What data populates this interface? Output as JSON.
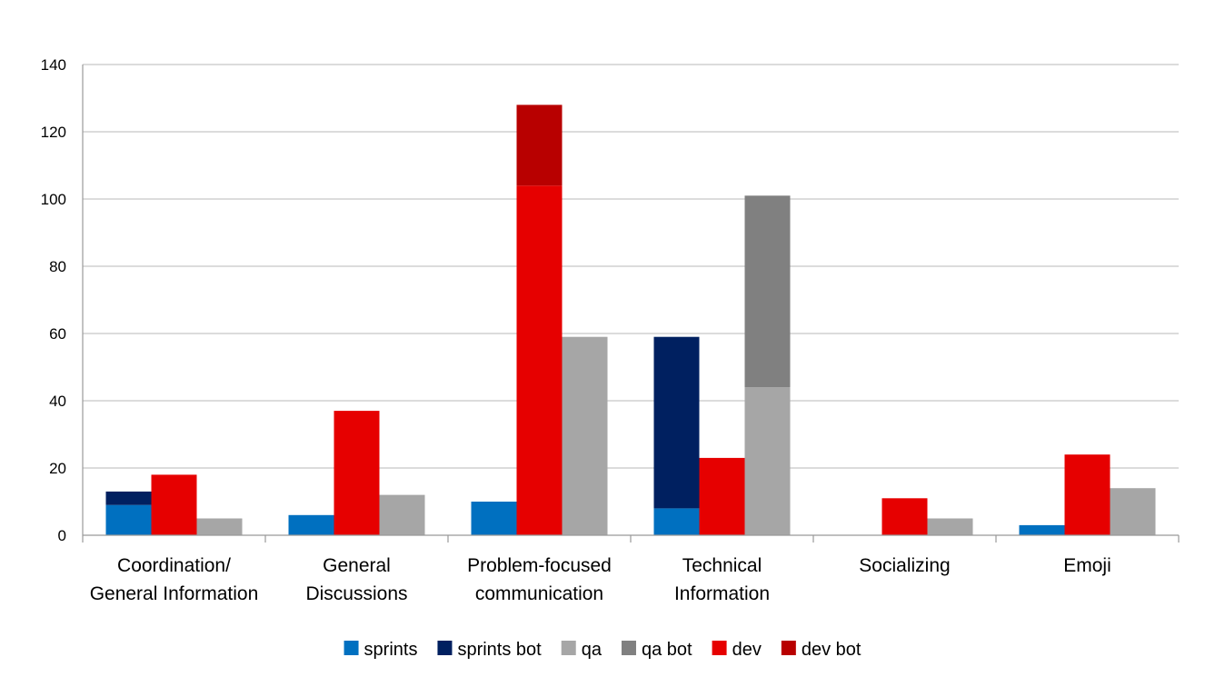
{
  "chart_data": {
    "type": "bar",
    "stacked_groups": true,
    "title": "",
    "xlabel": "",
    "ylabel": "",
    "ylim": [
      0,
      140
    ],
    "yticks": [
      0,
      20,
      40,
      60,
      80,
      100,
      120,
      140
    ],
    "grid": true,
    "legend_position": "bottom",
    "categories": [
      [
        "Coordination/",
        "General Information"
      ],
      [
        "General",
        "Discussions"
      ],
      [
        "Problem-focused",
        "communication"
      ],
      [
        "Technical",
        "Information"
      ],
      [
        "Socializing"
      ],
      [
        "Emoji"
      ]
    ],
    "groups": [
      {
        "name": "sprints",
        "stack": [
          {
            "series": "sprints",
            "values": [
              9,
              6,
              10,
              8,
              0,
              3
            ]
          },
          {
            "series": "sprints bot",
            "values": [
              4,
              0,
              0,
              51,
              0,
              0
            ]
          }
        ]
      },
      {
        "name": "dev",
        "stack": [
          {
            "series": "dev",
            "values": [
              18,
              37,
              104,
              23,
              11,
              24
            ]
          },
          {
            "series": "dev bot",
            "values": [
              0,
              0,
              24,
              0,
              0,
              0
            ]
          }
        ]
      },
      {
        "name": "qa",
        "stack": [
          {
            "series": "qa",
            "values": [
              5,
              12,
              59,
              44,
              5,
              14
            ]
          },
          {
            "series": "qa bot",
            "values": [
              0,
              0,
              0,
              57,
              0,
              0
            ]
          }
        ]
      }
    ],
    "legend": [
      {
        "name": "sprints",
        "color": "#0070C0"
      },
      {
        "name": "sprints bot",
        "color": "#002060"
      },
      {
        "name": "qa",
        "color": "#A6A6A6"
      },
      {
        "name": "qa bot",
        "color": "#808080"
      },
      {
        "name": "dev",
        "color": "#E60000"
      },
      {
        "name": "dev bot",
        "color": "#B80000"
      }
    ]
  }
}
